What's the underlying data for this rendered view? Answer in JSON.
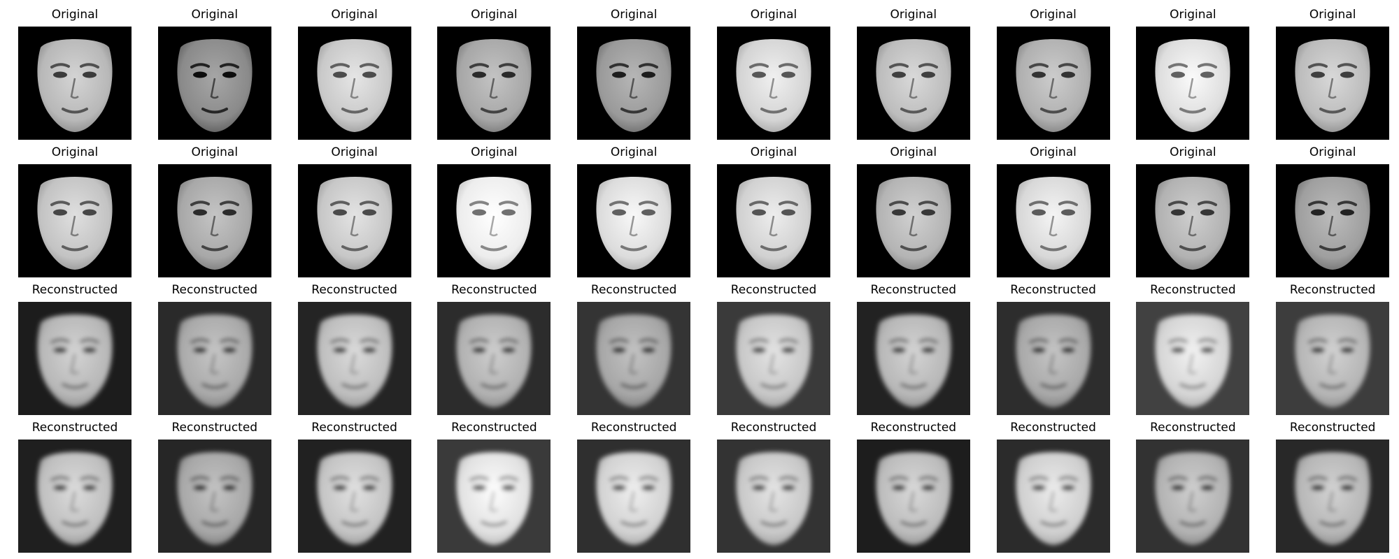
{
  "figure": {
    "rows": [
      {
        "kind": "original",
        "panels": [
          {
            "label": "Original",
            "background": "#000000",
            "face_tone": "#b8b8b8"
          },
          {
            "label": "Original",
            "background": "#000000",
            "face_tone": "#8a8a8a"
          },
          {
            "label": "Original",
            "background": "#000000",
            "face_tone": "#c9c9c9"
          },
          {
            "label": "Original",
            "background": "#000000",
            "face_tone": "#a7a7a7"
          },
          {
            "label": "Original",
            "background": "#000000",
            "face_tone": "#9a9a9a"
          },
          {
            "label": "Original",
            "background": "#000000",
            "face_tone": "#d4d4d4"
          },
          {
            "label": "Original",
            "background": "#000000",
            "face_tone": "#bdbdbd"
          },
          {
            "label": "Original",
            "background": "#000000",
            "face_tone": "#b0b0b0"
          },
          {
            "label": "Original",
            "background": "#000000",
            "face_tone": "#dedede"
          },
          {
            "label": "Original",
            "background": "#000000",
            "face_tone": "#bcbcbc"
          }
        ]
      },
      {
        "kind": "original",
        "panels": [
          {
            "label": "Original",
            "background": "#000000",
            "face_tone": "#c3c3c3"
          },
          {
            "label": "Original",
            "background": "#000000",
            "face_tone": "#a8a8a8"
          },
          {
            "label": "Original",
            "background": "#000000",
            "face_tone": "#c7c7c7"
          },
          {
            "label": "Original",
            "background": "#000000",
            "face_tone": "#ededed"
          },
          {
            "label": "Original",
            "background": "#000000",
            "face_tone": "#dcdcdc"
          },
          {
            "label": "Original",
            "background": "#000000",
            "face_tone": "#d1d1d1"
          },
          {
            "label": "Original",
            "background": "#000000",
            "face_tone": "#b4b4b4"
          },
          {
            "label": "Original",
            "background": "#000000",
            "face_tone": "#d8d8d8"
          },
          {
            "label": "Original",
            "background": "#000000",
            "face_tone": "#b2b2b2"
          },
          {
            "label": "Original",
            "background": "#000000",
            "face_tone": "#9f9f9f"
          }
        ]
      },
      {
        "kind": "reconstructed",
        "panels": [
          {
            "label": "Reconstructed",
            "background": "#1c1c1c",
            "face_tone": "#b7b7b7"
          },
          {
            "label": "Reconstructed",
            "background": "#2a2a2a",
            "face_tone": "#a9a9a9"
          },
          {
            "label": "Reconstructed",
            "background": "#242424",
            "face_tone": "#bebebe"
          },
          {
            "label": "Reconstructed",
            "background": "#2c2c2c",
            "face_tone": "#b1b1b1"
          },
          {
            "label": "Reconstructed",
            "background": "#343434",
            "face_tone": "#a6a6a6"
          },
          {
            "label": "Reconstructed",
            "background": "#3a3a3a",
            "face_tone": "#c7c7c7"
          },
          {
            "label": "Reconstructed",
            "background": "#222222",
            "face_tone": "#b7b7b7"
          },
          {
            "label": "Reconstructed",
            "background": "#2d2d2d",
            "face_tone": "#a8a8a8"
          },
          {
            "label": "Reconstructed",
            "background": "#414141",
            "face_tone": "#d5d5d5"
          },
          {
            "label": "Reconstructed",
            "background": "#3d3d3d",
            "face_tone": "#b5b5b5"
          }
        ]
      },
      {
        "kind": "reconstructed",
        "panels": [
          {
            "label": "Reconstructed",
            "background": "#1f1f1f",
            "face_tone": "#bfbfbf"
          },
          {
            "label": "Reconstructed",
            "background": "#262626",
            "face_tone": "#a7a7a7"
          },
          {
            "label": "Reconstructed",
            "background": "#212121",
            "face_tone": "#c4c4c4"
          },
          {
            "label": "Reconstructed",
            "background": "#3a3a3a",
            "face_tone": "#e1e1e1"
          },
          {
            "label": "Reconstructed",
            "background": "#2f2f2f",
            "face_tone": "#d2d2d2"
          },
          {
            "label": "Reconstructed",
            "background": "#333333",
            "face_tone": "#c8c8c8"
          },
          {
            "label": "Reconstructed",
            "background": "#1d1d1d",
            "face_tone": "#bcbcbc"
          },
          {
            "label": "Reconstructed",
            "background": "#2b2b2b",
            "face_tone": "#cfcfcf"
          },
          {
            "label": "Reconstructed",
            "background": "#323232",
            "face_tone": "#b2b2b2"
          },
          {
            "label": "Reconstructed",
            "background": "#282828",
            "face_tone": "#b6b6b6"
          }
        ]
      }
    ]
  }
}
